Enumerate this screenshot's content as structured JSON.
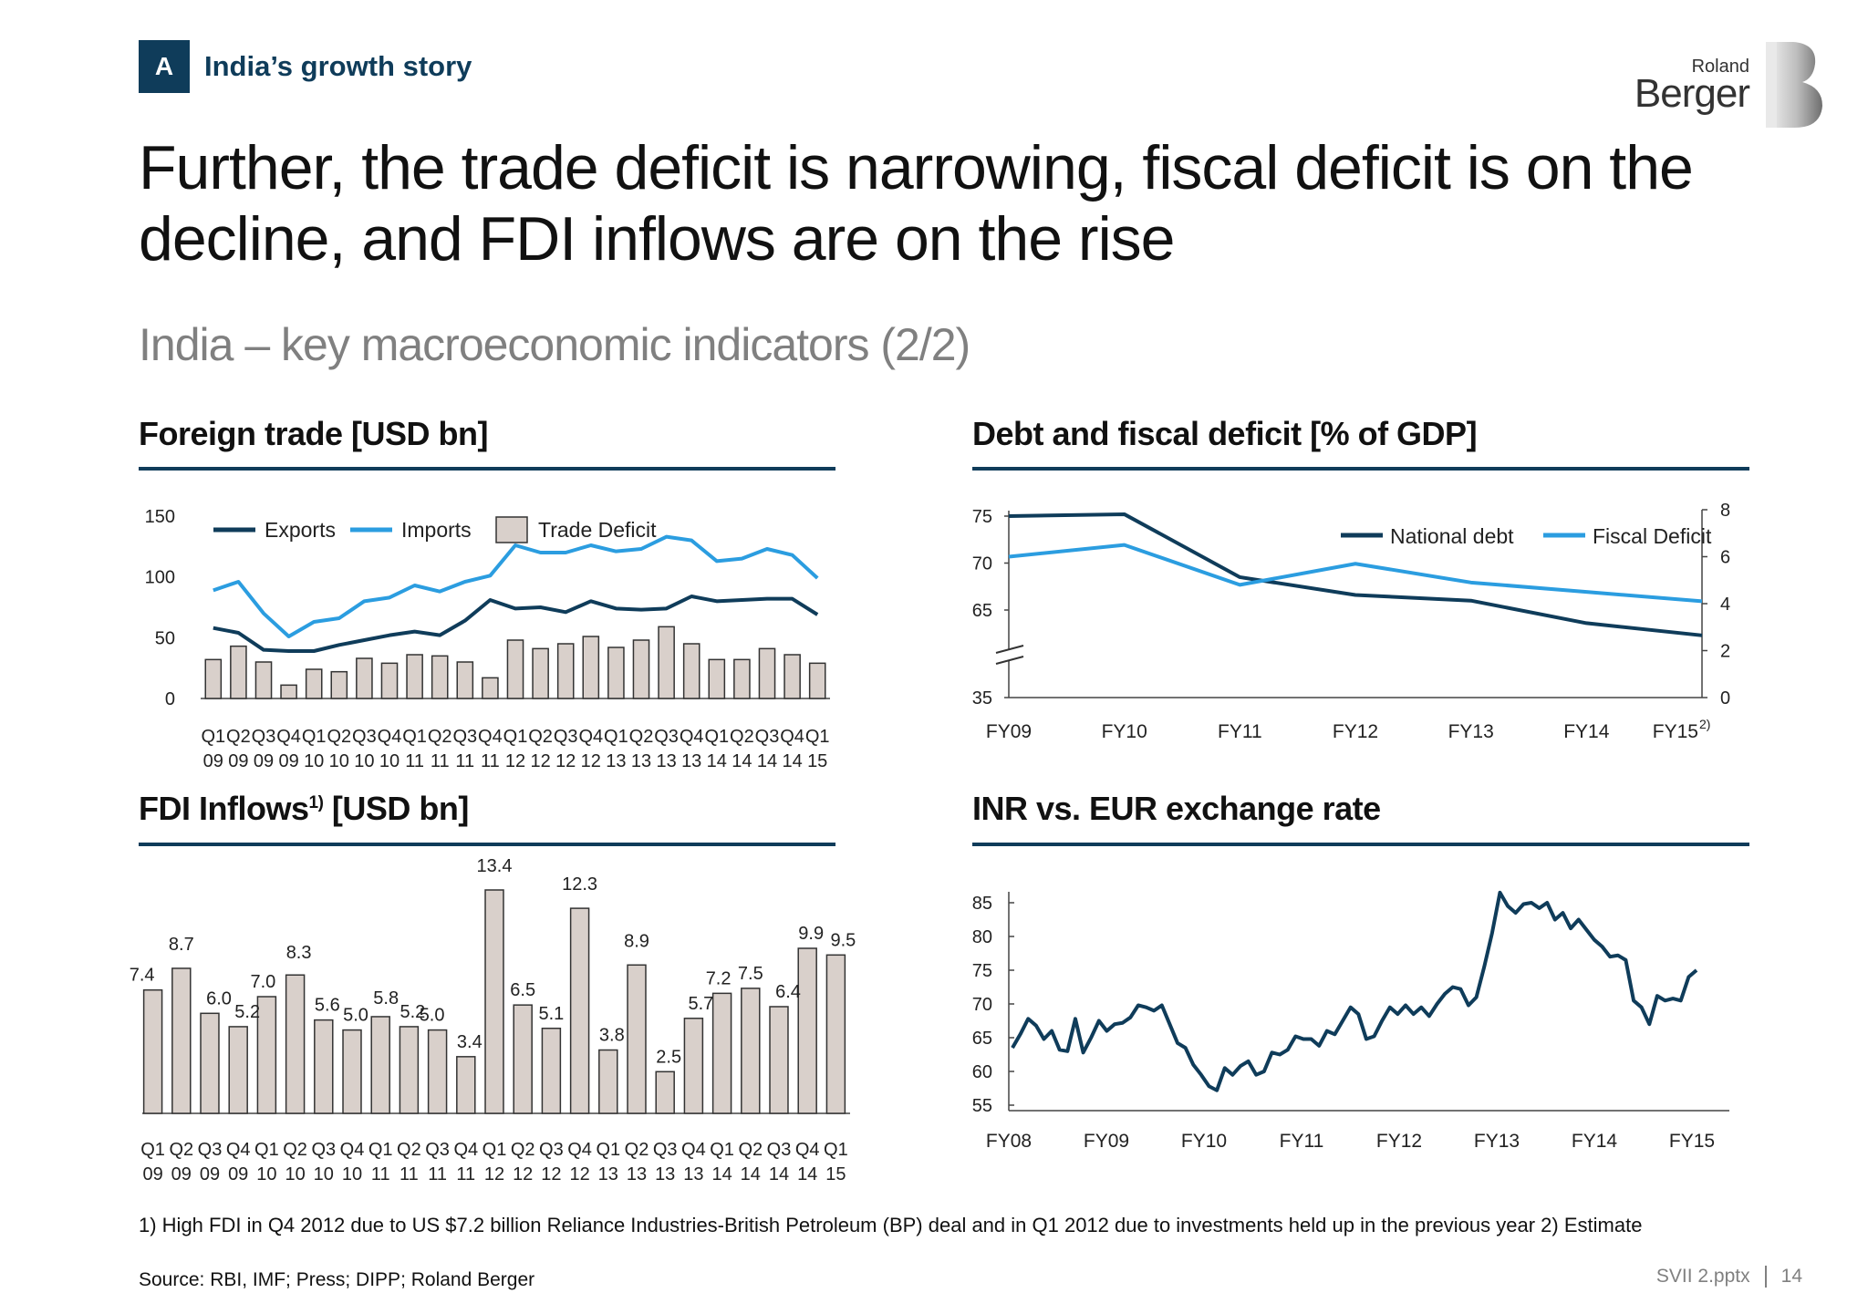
{
  "section": {
    "letter": "A",
    "title": "India’s growth story"
  },
  "logo": {
    "line1": "Roland",
    "line2": "Berger"
  },
  "headline": "Further, the trade deficit is narrowing, fiscal deficit is on the decline, and FDI inflows are on the rise",
  "subtitle": "India – key macroeconomic indicators (2/2)",
  "panels": {
    "trade_title": "Foreign trade [USD bn]",
    "debt_title": "Debt and fiscal deficit  [% of GDP]",
    "fdi_title": "FDI Inflows",
    "fdi_title_sup": "1)",
    "fdi_title_unit": " [USD bn]",
    "fx_title": "INR vs. EUR exchange rate"
  },
  "colors": {
    "dark": "#0f3c5a",
    "light": "#2b9de0",
    "bar_fill": "#d9d0cb",
    "bar_stroke": "#333333",
    "rule": "#0f3c5a"
  },
  "footnote": "1)  High FDI in Q4 2012 due to US $7.2 billion Reliance Industries-British Petroleum (BP) deal and in Q1 2012  due to investments held up in the previous year 2) Estimate",
  "source": "Source:  RBI, IMF; Press; DIPP; Roland Berger",
  "page": {
    "file": "SVII 2.pptx",
    "number": "14"
  },
  "chart_data": [
    {
      "type": "bar",
      "title": "Foreign trade [USD bn]",
      "categories": [
        "Q1 09",
        "Q2 09",
        "Q3 09",
        "Q4 09",
        "Q1 10",
        "Q2 10",
        "Q3 10",
        "Q4 10",
        "Q1 11",
        "Q2 11",
        "Q3 11",
        "Q4 11",
        "Q1 12",
        "Q2 12",
        "Q3 12",
        "Q4 12",
        "Q1 13",
        "Q2 13",
        "Q3 13",
        "Q4 13",
        "Q1 14",
        "Q2 14",
        "Q3 14",
        "Q4 14",
        "Q1 15"
      ],
      "x_top": [
        "Q1",
        "Q2",
        "Q3",
        "Q4",
        "Q1",
        "Q2",
        "Q3",
        "Q4",
        "Q1",
        "Q2",
        "Q3",
        "Q4",
        "Q1",
        "Q2",
        "Q3",
        "Q4",
        "Q1",
        "Q2",
        "Q3",
        "Q4",
        "Q1",
        "Q2",
        "Q3",
        "Q4",
        "Q1"
      ],
      "x_bottom": [
        "09",
        "09",
        "09",
        "09",
        "10",
        "10",
        "10",
        "10",
        "11",
        "11",
        "11",
        "11",
        "12",
        "12",
        "12",
        "12",
        "13",
        "13",
        "13",
        "13",
        "14",
        "14",
        "14",
        "14",
        "15"
      ],
      "yticks": [
        "150",
        "100",
        "50",
        "0"
      ],
      "ylim": [
        0,
        150
      ],
      "legend": [
        "Exports",
        "Imports",
        "Trade Deficit"
      ],
      "series": [
        {
          "name": "Exports",
          "kind": "line",
          "values": [
            58,
            54,
            40,
            39,
            39,
            44,
            48,
            52,
            55,
            52,
            64,
            81,
            74,
            75,
            71,
            80,
            74,
            73,
            74,
            84,
            80,
            81,
            82,
            82,
            69
          ]
        },
        {
          "name": "Imports",
          "kind": "line",
          "values": [
            89,
            96,
            70,
            51,
            63,
            66,
            80,
            83,
            93,
            88,
            96,
            101,
            126,
            120,
            120,
            126,
            121,
            123,
            133,
            130,
            113,
            115,
            123,
            118,
            99
          ]
        },
        {
          "name": "Trade Deficit",
          "kind": "bar",
          "values": [
            32,
            43,
            30,
            11,
            24,
            22,
            33,
            29,
            36,
            35,
            30,
            17,
            48,
            41,
            45,
            51,
            42,
            48,
            59,
            45,
            32,
            32,
            41,
            36,
            29
          ]
        }
      ]
    },
    {
      "type": "line",
      "title": "Debt and fiscal deficit  [% of GDP]",
      "categories": [
        "FY09",
        "FY10",
        "FY11",
        "FY12",
        "FY13",
        "FY14",
        "FY15"
      ],
      "last_label_sup": "2)",
      "yticks_left": [
        "75",
        "70",
        "65",
        "35"
      ],
      "yticks_right": [
        "8",
        "6",
        "4",
        "2",
        "0"
      ],
      "legend": [
        "National debt",
        "Fiscal Deficit"
      ],
      "series": [
        {
          "name": "National debt",
          "axis": "left",
          "values": [
            75.0,
            75.2,
            68.5,
            66.6,
            66.0,
            63.6,
            62.3
          ]
        },
        {
          "name": "Fiscal Deficit",
          "axis": "right",
          "values": [
            6.0,
            6.5,
            4.8,
            5.7,
            4.9,
            4.5,
            4.1
          ]
        }
      ]
    },
    {
      "type": "bar",
      "title": "FDI Inflows [USD bn]",
      "categories": [
        "Q1 09",
        "Q2 09",
        "Q3 09",
        "Q4 09",
        "Q1 10",
        "Q2 10",
        "Q3 10",
        "Q4 10",
        "Q1 11",
        "Q2 11",
        "Q3 11",
        "Q4 11",
        "Q1 12",
        "Q2 12",
        "Q3 12",
        "Q4 12",
        "Q1 13",
        "Q2 13",
        "Q3 13",
        "Q4 13",
        "Q1 14",
        "Q2 14",
        "Q3 14",
        "Q4 14",
        "Q1 15"
      ],
      "x_top": [
        "Q1",
        "Q2",
        "Q3",
        "Q4",
        "Q1",
        "Q2",
        "Q3",
        "Q4",
        "Q1",
        "Q2",
        "Q3",
        "Q4",
        "Q1",
        "Q2",
        "Q3",
        "Q4",
        "Q1",
        "Q2",
        "Q3",
        "Q4",
        "Q1",
        "Q2",
        "Q3",
        "Q4",
        "Q1"
      ],
      "x_bottom": [
        "09",
        "09",
        "09",
        "09",
        "10",
        "10",
        "10",
        "10",
        "11",
        "11",
        "11",
        "11",
        "12",
        "12",
        "12",
        "12",
        "13",
        "13",
        "13",
        "13",
        "14",
        "14",
        "14",
        "14",
        "15"
      ],
      "values": [
        7.4,
        8.7,
        6.0,
        5.2,
        7.0,
        8.3,
        5.6,
        5.0,
        5.8,
        5.2,
        5.0,
        3.4,
        13.4,
        6.5,
        5.1,
        12.3,
        3.8,
        8.9,
        2.5,
        5.7,
        7.2,
        7.5,
        6.4,
        9.9,
        9.5
      ],
      "labels": [
        "7.4",
        "8.7",
        "6.0",
        "5.2",
        "7.0",
        "8.3",
        "5.6",
        "5.0",
        "5.8",
        "5.2",
        "5.0",
        "3.4",
        "13.4",
        "6.5",
        "5.1",
        "12.3",
        "3.8",
        "8.9",
        "2.5",
        "5.7",
        "7.2",
        "7.5",
        "6.4",
        "9.9",
        "9.5"
      ]
    },
    {
      "type": "line",
      "title": "INR vs. EUR exchange rate",
      "xticks": [
        "FY08",
        "FY09",
        "FY10",
        "FY11",
        "FY12",
        "FY13",
        "FY14",
        "FY15"
      ],
      "yticks": [
        "85",
        "80",
        "75",
        "70",
        "65",
        "60",
        "55"
      ],
      "ylim": [
        55,
        85
      ],
      "series": [
        {
          "name": "",
          "values": [
            63.5,
            65.5,
            67.8,
            66.8,
            64.8,
            66.0,
            63.2,
            63.0,
            67.8,
            62.8,
            65.0,
            67.5,
            66.0,
            67.0,
            67.2,
            68.0,
            69.8,
            69.5,
            69.0,
            69.8,
            67.0,
            64.2,
            63.5,
            61.0,
            59.5,
            57.8,
            57.2,
            60.5,
            59.5,
            60.8,
            61.5,
            59.5,
            60.0,
            62.8,
            62.5,
            63.2,
            65.2,
            64.8,
            64.8,
            63.8,
            66.0,
            65.5,
            67.5,
            69.5,
            68.5,
            64.8,
            65.2,
            67.5,
            69.5,
            68.5,
            69.8,
            68.5,
            69.5,
            68.2,
            70.0,
            71.5,
            72.5,
            72.2,
            69.8,
            71.0,
            75.5,
            80.5,
            86.5,
            84.5,
            83.5,
            84.8,
            85.0,
            84.2,
            85.0,
            82.5,
            83.5,
            81.2,
            82.5,
            81.0,
            79.5,
            78.5,
            77.0,
            77.2,
            76.5,
            70.5,
            69.5,
            67.0,
            71.2,
            70.5,
            70.8,
            70.5,
            74.0,
            75.0
          ]
        }
      ]
    }
  ]
}
